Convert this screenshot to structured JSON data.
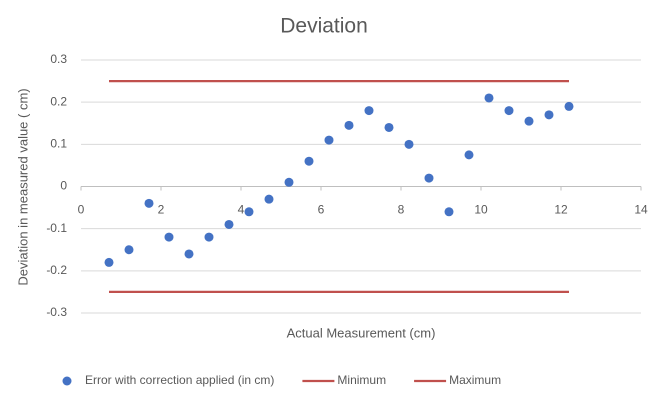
{
  "chart_data": {
    "type": "scatter",
    "title": "Deviation",
    "x_label": "Actual Measurement  (cm)",
    "y_label": "Deviation in measured value ( cm)",
    "xlim": [
      0,
      14
    ],
    "xticks": [
      0,
      2,
      4,
      6,
      8,
      10,
      12,
      14
    ],
    "ylim": [
      -0.3,
      0.3
    ],
    "yticks": [
      0.3,
      0.2,
      0.1,
      0,
      -0.1,
      -0.2,
      -0.3
    ],
    "grid": true,
    "legend": "bottom",
    "series": [
      {
        "name": "Error with correction applied (in cm)",
        "type": "scatter",
        "color": "#4472c4",
        "x": [
          0.7,
          1.2,
          1.7,
          2.2,
          2.7,
          3.2,
          3.7,
          4.2,
          4.7,
          5.2,
          5.7,
          6.2,
          6.7,
          7.2,
          7.7,
          8.2,
          8.7,
          9.2,
          9.7,
          10.2,
          10.7,
          11.2,
          11.7,
          12.2
        ],
        "values": [
          -0.18,
          -0.15,
          -0.04,
          -0.12,
          -0.16,
          -0.12,
          -0.09,
          -0.06,
          -0.03,
          0.01,
          0.06,
          0.11,
          0.145,
          0.18,
          0.14,
          0.1,
          0.02,
          -0.06,
          0.075,
          0.21,
          0.18,
          0.155,
          0.17,
          0.19
        ]
      },
      {
        "name": "Minimum",
        "type": "line",
        "color": "#c0504d",
        "x": [
          0.7,
          12.2
        ],
        "values": [
          -0.25,
          -0.25
        ]
      },
      {
        "name": "Maximum",
        "type": "line",
        "color": "#c0504d",
        "x": [
          0.7,
          12.2
        ],
        "values": [
          0.25,
          0.25
        ]
      }
    ]
  }
}
